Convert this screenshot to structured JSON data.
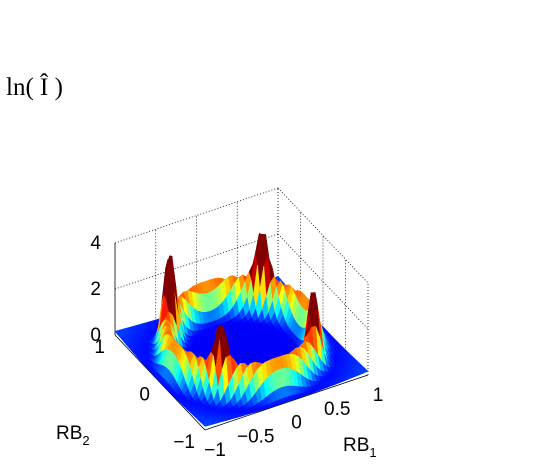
{
  "chart_data": {
    "type": "surface",
    "title": "",
    "xlabel": "RB",
    "xlabel_sub": "1",
    "ylabel": "RB",
    "ylabel_sub": "2",
    "zlabel": "ln( Î )",
    "xlim": [
      -1,
      1
    ],
    "ylim": [
      -1,
      1
    ],
    "zlim": [
      0,
      4
    ],
    "x_ticks": [
      "−1",
      "−0.5",
      "0",
      "0.5",
      "1"
    ],
    "y_ticks": [
      "−1",
      "0",
      "1"
    ],
    "z_ticks": [
      "0",
      "2",
      "4"
    ],
    "grid": true,
    "colormap": "jet",
    "peaks": [
      {
        "x": -0.57,
        "y": 0.57,
        "z": 4.0
      },
      {
        "x": 0.57,
        "y": 0.57,
        "z": 3.6
      },
      {
        "x": -0.57,
        "y": -0.57,
        "z": 3.2
      },
      {
        "x": 0.57,
        "y": -0.57,
        "z": 3.3
      }
    ],
    "ridge_circle_radius": 0.8,
    "center_value": 0.0
  }
}
